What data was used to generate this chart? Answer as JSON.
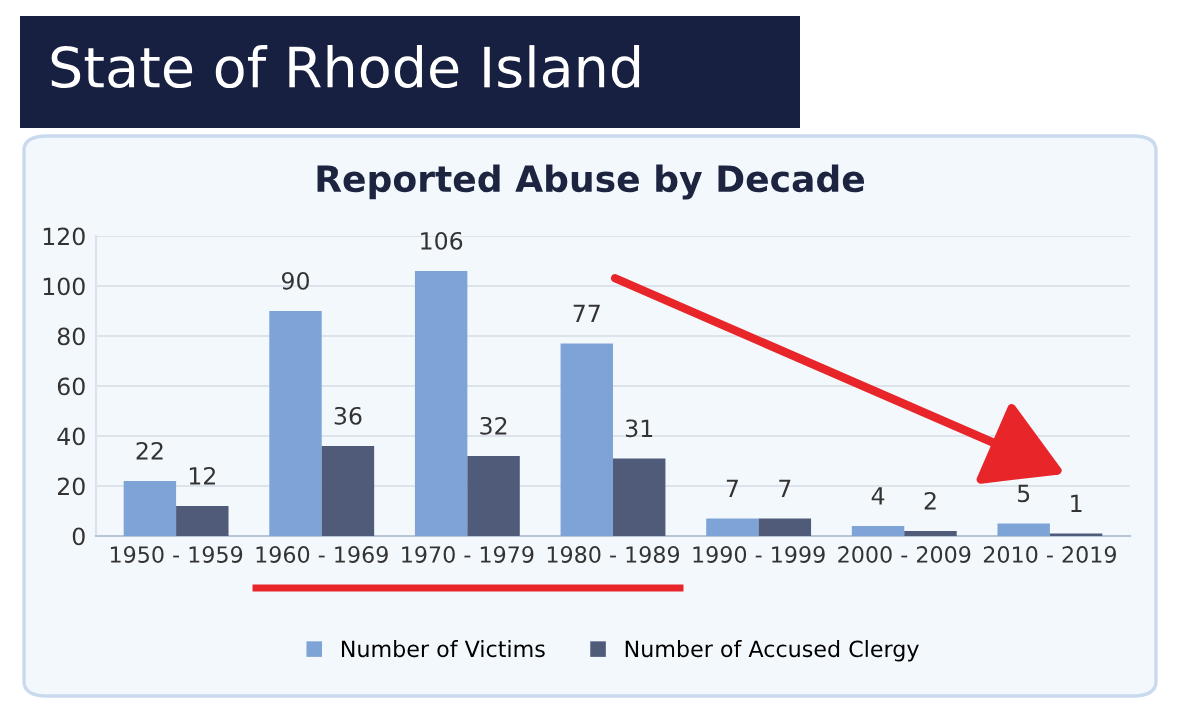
{
  "chart_data": {
    "type": "bar",
    "title": "State of Rhode Island",
    "subtitle": "Reported Abuse by Decade",
    "categories": [
      "1950 - 1959",
      "1960 - 1969",
      "1970 - 1979",
      "1980 - 1989",
      "1990 - 1999",
      "2000 - 2009",
      "2010 - 2019"
    ],
    "series": [
      {
        "name": "Number of Victims",
        "color": "#7ea3d6",
        "values": [
          22,
          90,
          106,
          77,
          7,
          4,
          5
        ]
      },
      {
        "name": "Number of Accused Clergy",
        "color": "#4f5b78",
        "values": [
          12,
          36,
          32,
          31,
          7,
          2,
          1
        ]
      }
    ],
    "ylim": [
      0,
      120
    ],
    "yticks": [
      0,
      20,
      40,
      60,
      80,
      100,
      120
    ],
    "grid": "y",
    "legend": "bottom",
    "data_labels": true
  }
}
